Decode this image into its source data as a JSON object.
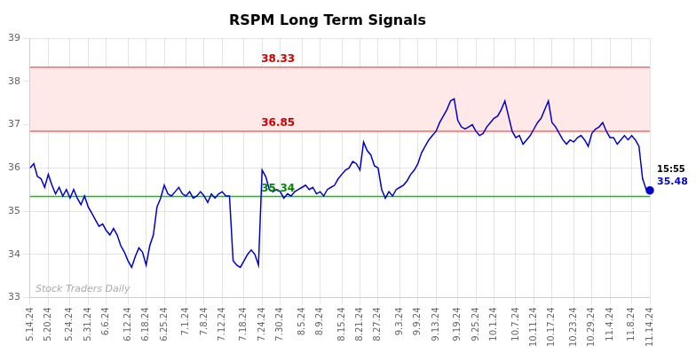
{
  "chart_data": {
    "type": "line",
    "title": "RSPM Long Term Signals",
    "categories": [
      "5.14.24",
      null,
      null,
      null,
      null,
      "5.20.24",
      null,
      null,
      null,
      null,
      null,
      "5.24.24",
      null,
      null,
      null,
      null,
      "5.31.24",
      null,
      null,
      null,
      null,
      "6.6.24",
      null,
      null,
      null,
      null,
      null,
      "6.12.24",
      null,
      null,
      null,
      null,
      "6.18.24",
      null,
      null,
      null,
      null,
      "6.25.24",
      null,
      null,
      null,
      null,
      null,
      "7.1.24",
      null,
      null,
      null,
      null,
      "7.8.24",
      null,
      null,
      null,
      null,
      "7.12.24",
      null,
      null,
      null,
      null,
      null,
      "7.18.24",
      null,
      null,
      null,
      null,
      "7.24.24",
      null,
      null,
      null,
      null,
      "7.30.24",
      null,
      null,
      null,
      null,
      null,
      "8.5.24",
      null,
      null,
      null,
      null,
      "8.9.24",
      null,
      null,
      null,
      null,
      null,
      "8.15.24",
      null,
      null,
      null,
      null,
      "8.21.24",
      null,
      null,
      null,
      null,
      "8.27.24",
      null,
      null,
      null,
      null,
      null,
      "9.3.24",
      null,
      null,
      null,
      null,
      "9.9.24",
      null,
      null,
      null,
      null,
      "9.13.24",
      null,
      null,
      null,
      null,
      null,
      "9.19.24",
      null,
      null,
      null,
      null,
      "9.25.24",
      null,
      null,
      null,
      null,
      "10.1.24",
      null,
      null,
      null,
      null,
      null,
      "10.7.24",
      null,
      null,
      null,
      null,
      "10.11.24",
      null,
      null,
      null,
      null,
      "10.17.24",
      null,
      null,
      null,
      null,
      null,
      "10.23.24",
      null,
      null,
      null,
      null,
      "10.29.24",
      null,
      null,
      null,
      null,
      "11.4.24",
      null,
      null,
      null,
      null,
      null,
      "11.8.24",
      null,
      null,
      null,
      null,
      "11.14.24"
    ],
    "values": [
      36.0,
      36.1,
      35.8,
      35.75,
      35.55,
      35.85,
      35.6,
      35.4,
      35.55,
      35.35,
      35.5,
      35.3,
      35.5,
      35.3,
      35.15,
      35.35,
      35.1,
      34.95,
      34.8,
      34.65,
      34.7,
      34.55,
      34.45,
      34.6,
      34.45,
      34.2,
      34.05,
      33.85,
      33.7,
      33.95,
      34.15,
      34.05,
      33.75,
      34.2,
      34.45,
      35.1,
      35.3,
      35.6,
      35.4,
      35.35,
      35.45,
      35.55,
      35.4,
      35.35,
      35.45,
      35.3,
      35.35,
      35.45,
      35.35,
      35.2,
      35.4,
      35.3,
      35.4,
      35.45,
      35.35,
      35.35,
      33.85,
      33.75,
      33.7,
      33.85,
      34.0,
      34.1,
      34.0,
      33.75,
      35.95,
      35.8,
      35.5,
      35.45,
      35.5,
      35.45,
      35.3,
      35.4,
      35.35,
      35.45,
      35.5,
      35.55,
      35.6,
      35.5,
      35.55,
      35.4,
      35.45,
      35.35,
      35.5,
      35.55,
      35.6,
      35.75,
      35.85,
      35.95,
      36.0,
      36.15,
      36.1,
      35.95,
      36.6,
      36.4,
      36.3,
      36.05,
      36.0,
      35.5,
      35.3,
      35.45,
      35.35,
      35.5,
      35.55,
      35.6,
      35.7,
      35.85,
      35.95,
      36.1,
      36.35,
      36.5,
      36.65,
      36.75,
      36.85,
      37.05,
      37.2,
      37.35,
      37.55,
      37.6,
      37.1,
      36.95,
      36.9,
      36.95,
      37.0,
      36.85,
      36.75,
      36.8,
      36.95,
      37.05,
      37.15,
      37.2,
      37.35,
      37.55,
      37.2,
      36.85,
      36.7,
      36.75,
      36.55,
      36.65,
      36.75,
      36.9,
      37.05,
      37.15,
      37.35,
      37.55,
      37.05,
      36.95,
      36.8,
      36.65,
      36.55,
      36.65,
      36.6,
      36.7,
      36.75,
      36.65,
      36.5,
      36.8,
      36.9,
      36.95,
      37.05,
      36.85,
      36.7,
      36.7,
      36.55,
      36.65,
      36.75,
      36.65,
      36.75,
      36.65,
      36.5,
      35.75,
      35.5,
      35.48
    ],
    "color": "#0000cc",
    "ylim": [
      33,
      39
    ],
    "yticks": [
      33,
      34,
      35,
      36,
      37,
      38,
      39
    ],
    "grid": true,
    "reference_lines": [
      {
        "value": 38.33,
        "label": "38.33",
        "color": "#ff6666",
        "label_color": "#cc0000"
      },
      {
        "value": 36.85,
        "label": "36.85",
        "color": "#ff6666",
        "label_color": "#cc0000"
      },
      {
        "value": 35.34,
        "label": "35.34",
        "color": "#00cc00",
        "label_color": "#008800"
      }
    ],
    "band": {
      "from": 36.85,
      "to": 38.33,
      "color": "#ffe8e8"
    },
    "annotations": [
      "15:55",
      "35.48"
    ],
    "watermark": "Stock Traders Daily"
  }
}
